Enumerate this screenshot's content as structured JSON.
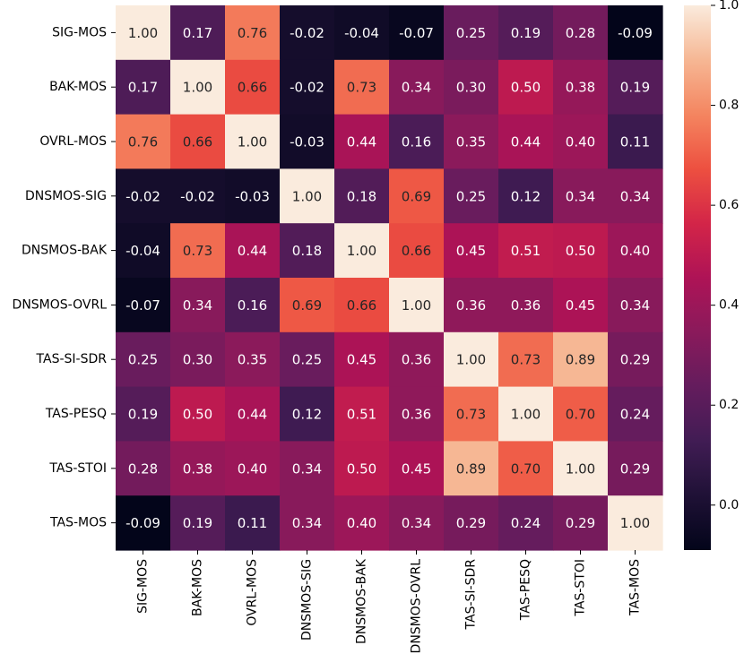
{
  "chart_data": {
    "type": "heatmap",
    "title": "",
    "xlabel": "",
    "ylabel": "",
    "labels": [
      "SIG-MOS",
      "BAK-MOS",
      "OVRL-MOS",
      "DNSMOS-SIG",
      "DNSMOS-BAK",
      "DNSMOS-OVRL",
      "TAS-SI-SDR",
      "TAS-PESQ",
      "TAS-STOI",
      "TAS-MOS"
    ],
    "values": [
      [
        1.0,
        0.17,
        0.76,
        -0.02,
        -0.04,
        -0.07,
        0.25,
        0.19,
        0.28,
        -0.09
      ],
      [
        0.17,
        1.0,
        0.66,
        -0.02,
        0.73,
        0.34,
        0.3,
        0.5,
        0.38,
        0.19
      ],
      [
        0.76,
        0.66,
        1.0,
        -0.03,
        0.44,
        0.16,
        0.35,
        0.44,
        0.4,
        0.11
      ],
      [
        -0.02,
        -0.02,
        -0.03,
        1.0,
        0.18,
        0.69,
        0.25,
        0.12,
        0.34,
        0.34
      ],
      [
        -0.04,
        0.73,
        0.44,
        0.18,
        1.0,
        0.66,
        0.45,
        0.51,
        0.5,
        0.4
      ],
      [
        -0.07,
        0.34,
        0.16,
        0.69,
        0.66,
        1.0,
        0.36,
        0.36,
        0.45,
        0.34
      ],
      [
        0.25,
        0.3,
        0.35,
        0.25,
        0.45,
        0.36,
        1.0,
        0.73,
        0.89,
        0.29
      ],
      [
        0.19,
        0.5,
        0.44,
        0.12,
        0.51,
        0.36,
        0.73,
        1.0,
        0.7,
        0.24
      ],
      [
        0.28,
        0.38,
        0.4,
        0.34,
        0.5,
        0.45,
        0.89,
        0.7,
        1.0,
        0.29
      ],
      [
        -0.09,
        0.19,
        0.11,
        0.34,
        0.4,
        0.34,
        0.29,
        0.24,
        0.29,
        1.0
      ]
    ],
    "value_format": "2 decimals",
    "colormap": "rocket",
    "color_range": [
      -0.09,
      1.0
    ],
    "colorbar_ticks": [
      "0.0",
      "0.2",
      "0.4",
      "0.6",
      "0.8",
      "1.0"
    ],
    "grid": false,
    "legend": "colorbar-right"
  }
}
